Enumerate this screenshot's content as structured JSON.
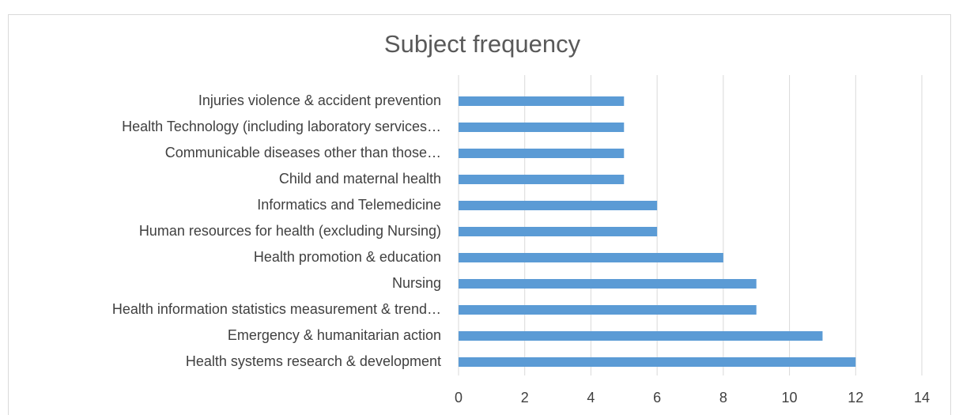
{
  "chart_data": {
    "type": "bar",
    "orientation": "horizontal",
    "title": "Subject frequency",
    "categories": [
      "Injuries violence & accident prevention",
      "Health Technology (including laboratory services…",
      "Communicable diseases other than those…",
      "Child and maternal health",
      "Informatics and Telemedicine",
      "Human resources for health (excluding Nursing)",
      "Health promotion & education",
      "Nursing",
      "Health information statistics measurement & trend…",
      "Emergency & humanitarian action",
      "Health systems research & development"
    ],
    "values": [
      5,
      5,
      5,
      5,
      6,
      6,
      8,
      9,
      9,
      11,
      12
    ],
    "color": "#5b9bd5",
    "xlim": [
      0,
      14
    ],
    "xticks": [
      0,
      2,
      4,
      6,
      8,
      10,
      12,
      14
    ],
    "grid": true
  }
}
